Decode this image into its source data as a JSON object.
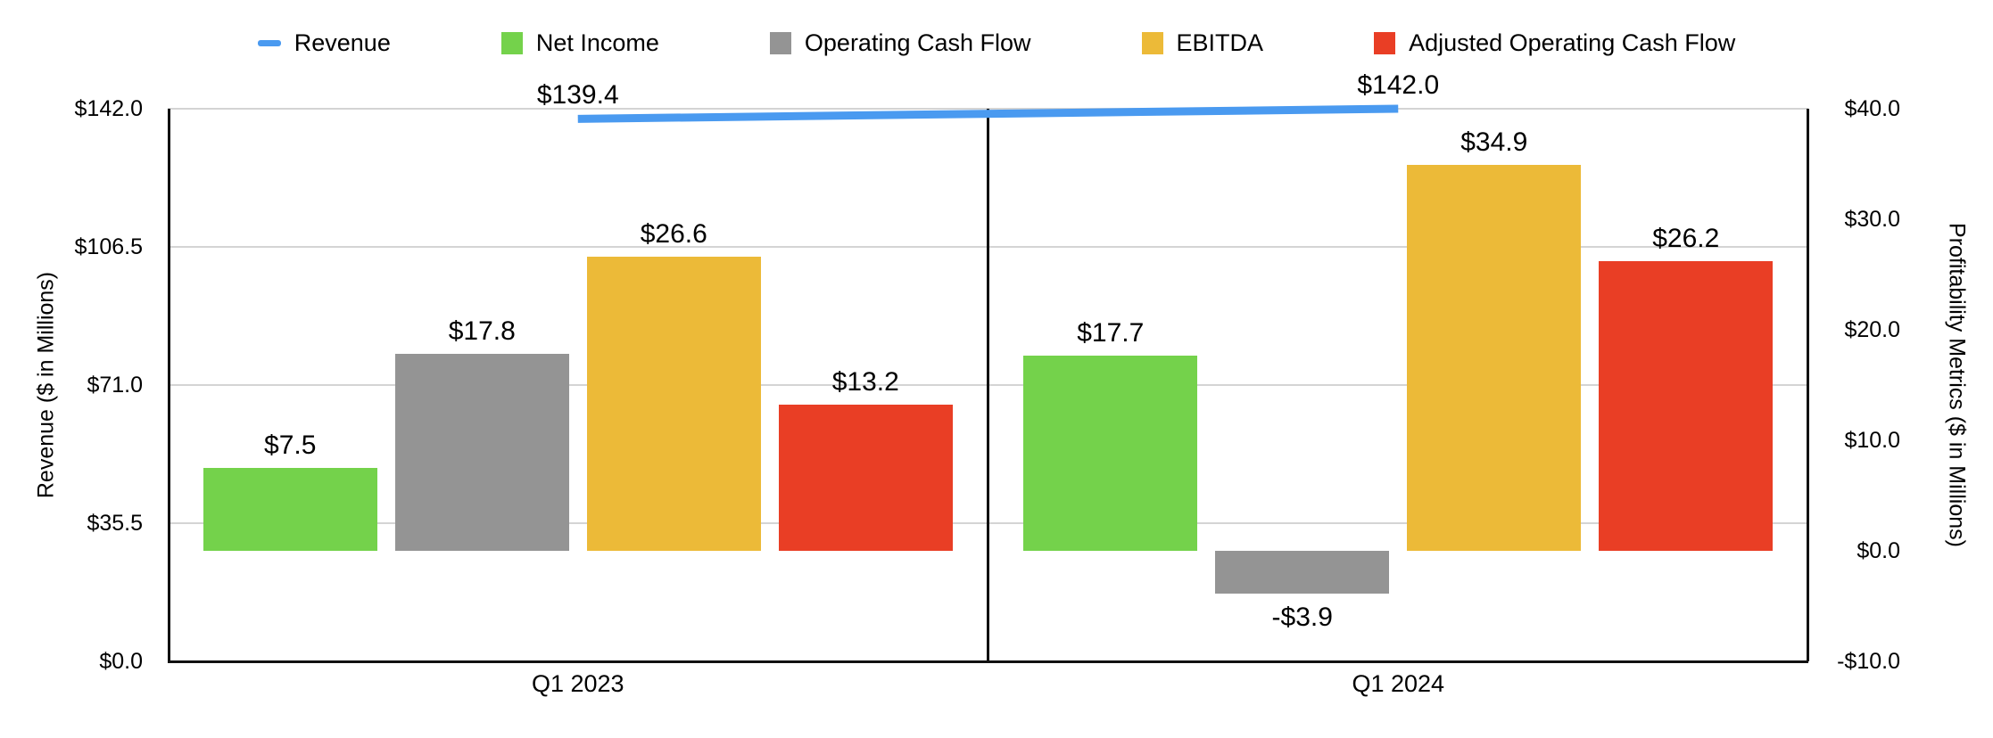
{
  "chart_data": {
    "type": "bar+line combo, dual axis",
    "title": "",
    "categories": [
      "Q1 2023",
      "Q1 2024"
    ],
    "series": [
      {
        "name": "Revenue",
        "type": "line",
        "axis": "left",
        "color": "#4a9af0",
        "values": [
          139.4,
          142.0
        ],
        "labels": [
          "$139.4",
          "$142.0"
        ]
      },
      {
        "name": "Net Income",
        "type": "bar",
        "axis": "right",
        "color": "#74d24b",
        "values": [
          7.5,
          17.7
        ],
        "labels": [
          "$7.5",
          "$17.7"
        ]
      },
      {
        "name": "Operating Cash Flow",
        "type": "bar",
        "axis": "right",
        "color": "#949494",
        "values": [
          17.8,
          -3.9
        ],
        "labels": [
          "$17.8",
          "-$3.9"
        ]
      },
      {
        "name": "EBITDA",
        "type": "bar",
        "axis": "right",
        "color": "#ecba38",
        "values": [
          26.6,
          34.9
        ],
        "labels": [
          "$26.6",
          "$34.9"
        ]
      },
      {
        "name": "Adjusted Operating Cash Flow",
        "type": "bar",
        "axis": "right",
        "color": "#e93e25",
        "values": [
          13.2,
          26.2
        ],
        "labels": [
          "$13.2",
          "$26.2"
        ]
      }
    ],
    "axes": {
      "left": {
        "title": "Revenue ($ in Millions)",
        "min": 0,
        "max": 142,
        "ticks": [
          {
            "label": "$142.0",
            "value": 142
          },
          {
            "label": "$106.5",
            "value": 106.5
          },
          {
            "label": "$71.0",
            "value": 71
          },
          {
            "label": "$35.5",
            "value": 35.5
          },
          {
            "label": "$0.0",
            "value": 0
          }
        ]
      },
      "right": {
        "title": "Profitability Metrics ($ in Millions)",
        "min": -10,
        "max": 40,
        "ticks": [
          {
            "label": "$40.0",
            "value": 40
          },
          {
            "label": "$30.0",
            "value": 30
          },
          {
            "label": "$20.0",
            "value": 20
          },
          {
            "label": "$10.0",
            "value": 10
          },
          {
            "label": "$0.0",
            "value": 0
          },
          {
            "label": "-$10.0",
            "value": -10
          }
        ]
      }
    },
    "legend_position": "top",
    "grid": "horizontal gridlines at left-axis ticks",
    "colors": {
      "gridline": "#d4d4d4",
      "axis_line": "#111111",
      "background": "#ffffff",
      "text": "#000000"
    }
  }
}
